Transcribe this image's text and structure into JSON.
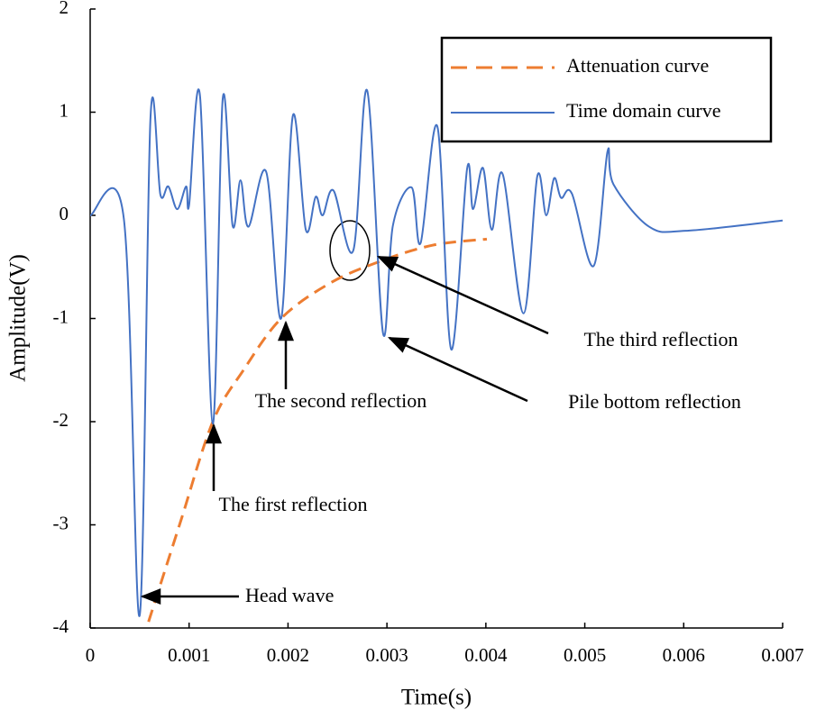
{
  "chart_data": {
    "type": "line",
    "x_label": "Time(s)",
    "y_label": "Amplitude(V)",
    "xlim": [
      0,
      0.007
    ],
    "xticks": [
      0,
      0.001,
      0.002,
      0.003,
      0.004,
      0.005,
      0.006,
      0.007
    ],
    "ylim": [
      -4,
      2
    ],
    "yticks": [
      -4,
      -3,
      -2,
      -1,
      0,
      1,
      2
    ],
    "grid": false,
    "legend": "upper right",
    "series": [
      {
        "name": "Attenuation curve",
        "color": "#ed7d31",
        "dashed": true,
        "x": [
          0.00059,
          0.00091,
          0.00124,
          0.00155,
          0.00193,
          0.00242,
          0.00292,
          0.00346,
          0.00401
        ],
        "values": [
          -3.94,
          -2.98,
          -2.0,
          -1.5,
          -1.0,
          -0.66,
          -0.45,
          -0.29,
          -0.23
        ]
      },
      {
        "name": "Time domain curve",
        "color": "#4472c4",
        "dashed": false,
        "x": [
          0,
          0.00034,
          0.0005,
          0.00061,
          0.00071,
          0.00079,
          0.00088,
          0.00097,
          0.001,
          0.00111,
          0.00124,
          0.00134,
          0.00144,
          0.00152,
          0.0016,
          0.00178,
          0.00193,
          0.00205,
          0.00218,
          0.00228,
          0.00235,
          0.00246,
          0.00266,
          0.0028,
          0.00296,
          0.00306,
          0.00325,
          0.00334,
          0.00351,
          0.00365,
          0.00381,
          0.00387,
          0.00397,
          0.00406,
          0.00417,
          0.00438,
          0.00452,
          0.00461,
          0.00469,
          0.00476,
          0.00487,
          0.00509,
          0.00523,
          0.00529,
          0.00565,
          0.00602,
          0.007
        ],
        "values": [
          0,
          -0.03,
          -3.88,
          0.95,
          0.2,
          0.28,
          0.06,
          0.28,
          0.1,
          1.16,
          -2.02,
          1.13,
          -0.1,
          0.34,
          -0.11,
          0.42,
          -1.0,
          0.97,
          -0.14,
          0.18,
          0,
          0.24,
          -0.34,
          1.21,
          -1.14,
          -0.1,
          0.27,
          -0.27,
          0.86,
          -1.3,
          0.45,
          0.06,
          0.46,
          -0.14,
          0.4,
          -0.95,
          0.38,
          0,
          0.36,
          0.17,
          0.21,
          -0.49,
          0.62,
          0.3,
          -0.11,
          -0.15,
          -0.05
        ]
      }
    ],
    "annotations": [
      "Head wave",
      "The first reflection",
      "The second reflection",
      "The third reflection",
      "Pile bottom reflection"
    ]
  }
}
